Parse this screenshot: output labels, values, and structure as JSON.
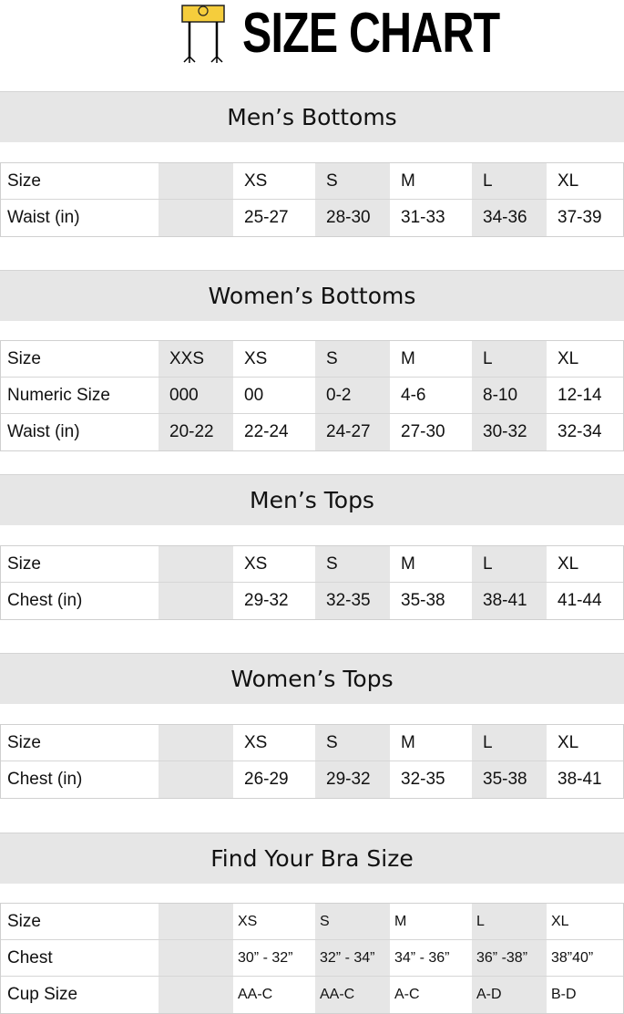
{
  "logo": {
    "text": "SIZE CHART",
    "accent": "#f5cd3c"
  },
  "colors": {
    "header_bg": "#e6e6e6",
    "shade": "#e6e6e6"
  },
  "sections": [
    {
      "title": "Men’s Bottoms",
      "rows": [
        [
          "Size",
          "",
          "XS",
          "S",
          "M",
          "L",
          "XL"
        ],
        [
          "Waist (in)",
          "",
          "25-27",
          "28-30",
          "31-33",
          "34-36",
          "37-39"
        ]
      ]
    },
    {
      "title": "Women’s Bottoms",
      "rows": [
        [
          "Size",
          "XXS",
          "XS",
          "S",
          "M",
          "L",
          "XL"
        ],
        [
          "Numeric Size",
          "000",
          "00",
          "0-2",
          "4-6",
          "8-10",
          "12-14"
        ],
        [
          "Waist (in)",
          "20-22",
          "22-24",
          "24-27",
          "27-30",
          "30-32",
          "32-34"
        ]
      ]
    },
    {
      "title": "Men’s Tops",
      "rows": [
        [
          "Size",
          "",
          "XS",
          "S",
          "M",
          "L",
          "XL"
        ],
        [
          "Chest (in)",
          "",
          "29-32",
          "32-35",
          "35-38",
          "38-41",
          "41-44"
        ]
      ]
    },
    {
      "title": "Women’s Tops",
      "rows": [
        [
          "Size",
          "",
          "XS",
          "S",
          "M",
          "L",
          "XL"
        ],
        [
          "Chest (in)",
          "",
          "26-29",
          "29-32",
          "32-35",
          "35-38",
          "38-41"
        ]
      ]
    },
    {
      "title": "Find Your Bra Size",
      "rows": [
        [
          "Size",
          "",
          "XS",
          "S",
          "M",
          "L",
          "XL"
        ],
        [
          "Chest",
          "",
          "30” - 32”",
          "32” - 34”",
          "34” - 36”",
          "36” -38”",
          "38”40”"
        ],
        [
          "Cup Size",
          "",
          "AA-C",
          "AA-C",
          "A-C",
          "A-D",
          "B-D"
        ]
      ]
    }
  ]
}
